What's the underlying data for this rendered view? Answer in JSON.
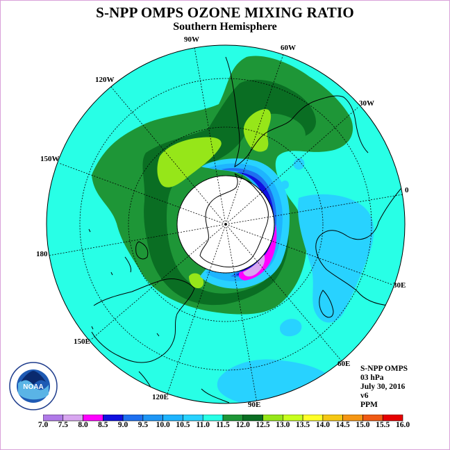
{
  "title": "S-NPP OMPS OZONE MIXING RATIO",
  "subtitle": "Southern Hemisphere",
  "longitude_labels": {
    "lon_90w": "90W",
    "lon_60w": "60W",
    "lon_120w": "120W",
    "lon_30w": "30W",
    "lon_150w": "150W",
    "lon_0": "0",
    "lon_180": "180",
    "lon_30e": "30E",
    "lon_150e": "150E",
    "lon_60e": "60E",
    "lon_120e": "120E",
    "lon_90e": "90E"
  },
  "info": {
    "line1": "S-NPP OMPS",
    "line2": "03 hPa",
    "line3": "July 30, 2016",
    "line4": "v6",
    "line5": "PPM"
  },
  "logo": {
    "text": "NOAA",
    "ring_text": "NATIONAL OCEANIC AND ATMOSPHERIC ADMINISTRATION · U.S. DEPARTMENT OF COMMERCE"
  },
  "colorbar": {
    "ticks": [
      "7.0",
      "7.5",
      "8.0",
      "8.5",
      "9.0",
      "9.5",
      "10.0",
      "10.5",
      "11.0",
      "11.5",
      "12.0",
      "12.5",
      "13.0",
      "13.5",
      "14.0",
      "14.5",
      "15.0",
      "15.5",
      "16.0"
    ],
    "colors": [
      "#b07ae8",
      "#d8a6f0",
      "#ff00ff",
      "#1010e0",
      "#1e70f0",
      "#1e96f5",
      "#1eb4ff",
      "#28d2ff",
      "#28ffe6",
      "#1e9637",
      "#0a6e23",
      "#96e619",
      "#c8ff1e",
      "#ffff28",
      "#f5c814",
      "#f59614",
      "#f05a14",
      "#e60000",
      "#8b5a3c"
    ]
  },
  "map_colors": {
    "background_level": "#28ffe6",
    "green_level": "#1e9637",
    "dark_green_level": "#0a6e23",
    "light_green_level": "#96e619",
    "light_blue_level": "#28d2ff",
    "blue_level": "#1eb4ff",
    "pole_mask": "#ffffff"
  }
}
